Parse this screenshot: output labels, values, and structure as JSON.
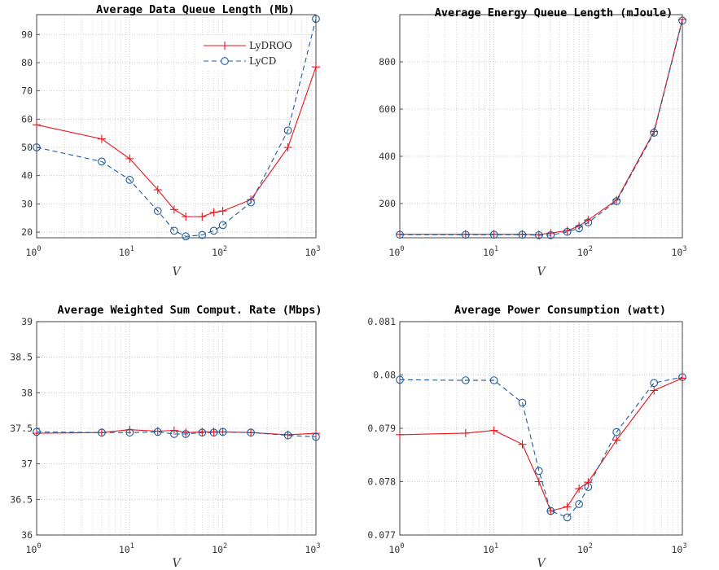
{
  "figure": {
    "colors": {
      "LyDROO": "#e8141c",
      "LyCD": "#1f5a9c",
      "grid": "#bdbdbd"
    },
    "legend": [
      "LyDROO",
      "LyCD"
    ],
    "legend_placement": "top-right (top-left panel only)"
  },
  "chart_data": [
    {
      "type": "line",
      "title": "Average Data Queue Length (Mb)",
      "xlabel": "V",
      "xscale": "log",
      "xlim": [
        1,
        1000
      ],
      "ylim": [
        18,
        97
      ],
      "yticks": [
        "20",
        "30",
        "40",
        "50",
        "60",
        "70",
        "80",
        "90"
      ],
      "xticks": [
        "10^0",
        "10^1",
        "10^2",
        "10^3"
      ],
      "grid": true,
      "x": [
        1,
        5,
        10,
        20,
        30,
        40,
        60,
        80,
        100,
        200,
        500,
        1000
      ],
      "series": [
        {
          "name": "LyDROO",
          "values": [
            58,
            53,
            46,
            35,
            28,
            25.5,
            25.5,
            27,
            27.5,
            31.5,
            50,
            78.5
          ]
        },
        {
          "name": "LyCD",
          "values": [
            50,
            45,
            38.5,
            27.5,
            20.5,
            18.5,
            19,
            20.5,
            22.5,
            30.5,
            56,
            95.5
          ]
        }
      ]
    },
    {
      "type": "line",
      "title": "Average Energy Queue Length (mJoule)",
      "xlabel": "V",
      "xscale": "log",
      "xlim": [
        1,
        1000
      ],
      "ylim": [
        55,
        1000
      ],
      "yticks": [
        "200",
        "400",
        "600",
        "800"
      ],
      "xticks": [
        "10^0",
        "10^1",
        "10^2",
        "10^3"
      ],
      "grid": true,
      "x": [
        1,
        5,
        10,
        20,
        30,
        40,
        60,
        80,
        100,
        200,
        500,
        1000
      ],
      "series": [
        {
          "name": "LyDROO",
          "values": [
            70,
            70,
            70,
            70,
            68,
            75,
            85,
            105,
            130,
            215,
            505,
            980
          ]
        },
        {
          "name": "LyCD",
          "values": [
            68,
            68,
            68,
            68,
            66,
            66,
            80,
            95,
            120,
            210,
            500,
            975
          ]
        }
      ]
    },
    {
      "type": "line",
      "title": "Average Weighted Sum Comput. Rate (Mbps)",
      "xlabel": "V",
      "xscale": "log",
      "xlim": [
        1,
        1000
      ],
      "ylim": [
        36,
        39
      ],
      "yticks": [
        "36",
        "36.5",
        "37",
        "37.5",
        "38",
        "38.5",
        "39"
      ],
      "xticks": [
        "10^0",
        "10^1",
        "10^2",
        "10^3"
      ],
      "grid": true,
      "x": [
        1,
        5,
        10,
        20,
        30,
        40,
        60,
        80,
        100,
        200,
        500,
        1000
      ],
      "series": [
        {
          "name": "LyDROO",
          "values": [
            37.43,
            37.44,
            37.48,
            37.46,
            37.47,
            37.44,
            37.45,
            37.45,
            37.45,
            37.44,
            37.41,
            37.43
          ]
        },
        {
          "name": "LyCD",
          "values": [
            37.45,
            37.44,
            37.44,
            37.45,
            37.42,
            37.42,
            37.44,
            37.44,
            37.45,
            37.44,
            37.4,
            37.38
          ]
        }
      ]
    },
    {
      "type": "line",
      "title": "Average Power Consumption (watt)",
      "xlabel": "V",
      "xscale": "log",
      "xlim": [
        1,
        1000
      ],
      "ylim": [
        0.077,
        0.081
      ],
      "yticks": [
        "0.077",
        "0.078",
        "0.079",
        "0.08",
        "0.081"
      ],
      "xticks": [
        "10^0",
        "10^1",
        "10^2",
        "10^3"
      ],
      "grid": true,
      "x": [
        1,
        5,
        10,
        20,
        30,
        40,
        60,
        80,
        100,
        200,
        500,
        1000
      ],
      "series": [
        {
          "name": "LyDROO",
          "values": [
            0.07888,
            0.07891,
            0.07896,
            0.0787,
            0.078,
            0.07745,
            0.07753,
            0.07787,
            0.07799,
            0.07878,
            0.07971,
            0.07994
          ]
        },
        {
          "name": "LyCD",
          "values": [
            0.07991,
            0.0799,
            0.0799,
            0.07948,
            0.0782,
            0.07745,
            0.07733,
            0.07758,
            0.0779,
            0.07893,
            0.07985,
            0.07996
          ]
        }
      ]
    }
  ]
}
